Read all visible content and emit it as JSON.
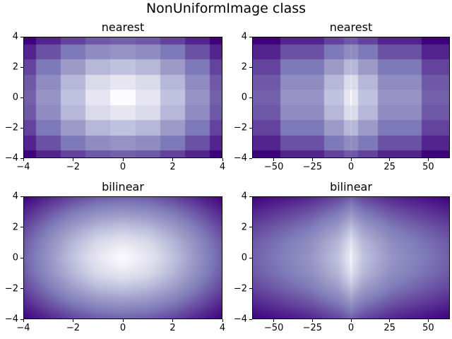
{
  "chart_data": {
    "type": "heatmap",
    "suptitle": "NonUniformImage class",
    "colormap": {
      "name": "Purples",
      "anchors": [
        "#fcfbfd",
        "#efedf5",
        "#dadaeb",
        "#bcbddc",
        "#9e9ac8",
        "#807dba",
        "#6a51a3",
        "#54278f",
        "#3f007d"
      ]
    },
    "vmin": 0,
    "vmax": 5.6569,
    "y": [
      -4,
      -3,
      -2,
      -1,
      0,
      1,
      2,
      3,
      4
    ],
    "x_axes": {
      "linear": [
        -4,
        -3,
        -2,
        -1,
        0,
        1,
        2,
        3,
        4
      ],
      "cubed": [
        -64,
        -27,
        -8,
        -1,
        0,
        1,
        8,
        27,
        64
      ]
    },
    "z": [
      [
        5.6569,
        5.0,
        4.4721,
        4.1231,
        4.0,
        4.1231,
        4.4721,
        5.0,
        5.6569
      ],
      [
        5.0,
        4.2426,
        3.6056,
        3.1623,
        3.0,
        3.1623,
        3.6056,
        4.2426,
        5.0
      ],
      [
        4.4721,
        3.6056,
        2.8284,
        2.2361,
        2.0,
        2.2361,
        2.8284,
        3.6056,
        4.4721
      ],
      [
        4.1231,
        3.1623,
        2.2361,
        1.4142,
        1.0,
        1.4142,
        2.2361,
        3.1623,
        4.1231
      ],
      [
        4.0,
        3.0,
        2.0,
        1.0,
        0.0,
        1.0,
        2.0,
        3.0,
        4.0
      ],
      [
        4.1231,
        3.1623,
        2.2361,
        1.4142,
        1.0,
        1.4142,
        2.2361,
        3.1623,
        4.1231
      ],
      [
        4.4721,
        3.6056,
        2.8284,
        2.2361,
        2.0,
        2.2361,
        2.8284,
        3.6056,
        4.4721
      ],
      [
        5.0,
        4.2426,
        3.6056,
        3.1623,
        3.0,
        3.1623,
        3.6056,
        4.2426,
        5.0
      ],
      [
        5.6569,
        5.0,
        4.4721,
        4.1231,
        4.0,
        4.1231,
        4.4721,
        5.0,
        5.6569
      ]
    ],
    "subplots": [
      {
        "title": "nearest",
        "interpolation": "nearest",
        "x": "linear",
        "xlim": [
          -4,
          4
        ],
        "ylim": [
          -4,
          4
        ],
        "xtick_values": [
          -4,
          -2,
          0,
          2,
          4
        ],
        "xtick_labels": [
          "−4",
          "−2",
          "0",
          "2",
          "4"
        ],
        "ytick_values": [
          4,
          2,
          0,
          -2,
          -4
        ],
        "ytick_labels": [
          "4",
          "2",
          "0",
          "−2",
          "−4"
        ]
      },
      {
        "title": "nearest",
        "interpolation": "nearest",
        "x": "cubed",
        "xlim": [
          -64,
          64
        ],
        "ylim": [
          -4,
          4
        ],
        "xtick_values": [
          -50,
          -25,
          0,
          25,
          50
        ],
        "xtick_labels": [
          "−50",
          "−25",
          "0",
          "25",
          "50"
        ],
        "ytick_values": [
          4,
          2,
          0,
          -2,
          -4
        ],
        "ytick_labels": [
          "4",
          "2",
          "0",
          "−2",
          "−4"
        ]
      },
      {
        "title": "bilinear",
        "interpolation": "bilinear",
        "x": "linear",
        "xlim": [
          -4,
          4
        ],
        "ylim": [
          -4,
          4
        ],
        "xtick_values": [
          -4,
          -2,
          0,
          2,
          4
        ],
        "xtick_labels": [
          "−4",
          "−2",
          "0",
          "2",
          "4"
        ],
        "ytick_values": [
          4,
          2,
          0,
          -2,
          -4
        ],
        "ytick_labels": [
          "4",
          "2",
          "0",
          "−2",
          "−4"
        ]
      },
      {
        "title": "bilinear",
        "interpolation": "bilinear",
        "x": "cubed",
        "xlim": [
          -64,
          64
        ],
        "ylim": [
          -4,
          4
        ],
        "xtick_values": [
          -50,
          -25,
          0,
          25,
          50
        ],
        "xtick_labels": [
          "−50",
          "−25",
          "0",
          "25",
          "50"
        ],
        "ytick_values": [
          4,
          2,
          0,
          -2,
          -4
        ],
        "ytick_labels": [
          "4",
          "2",
          "0",
          "−2",
          "−4"
        ]
      }
    ]
  }
}
